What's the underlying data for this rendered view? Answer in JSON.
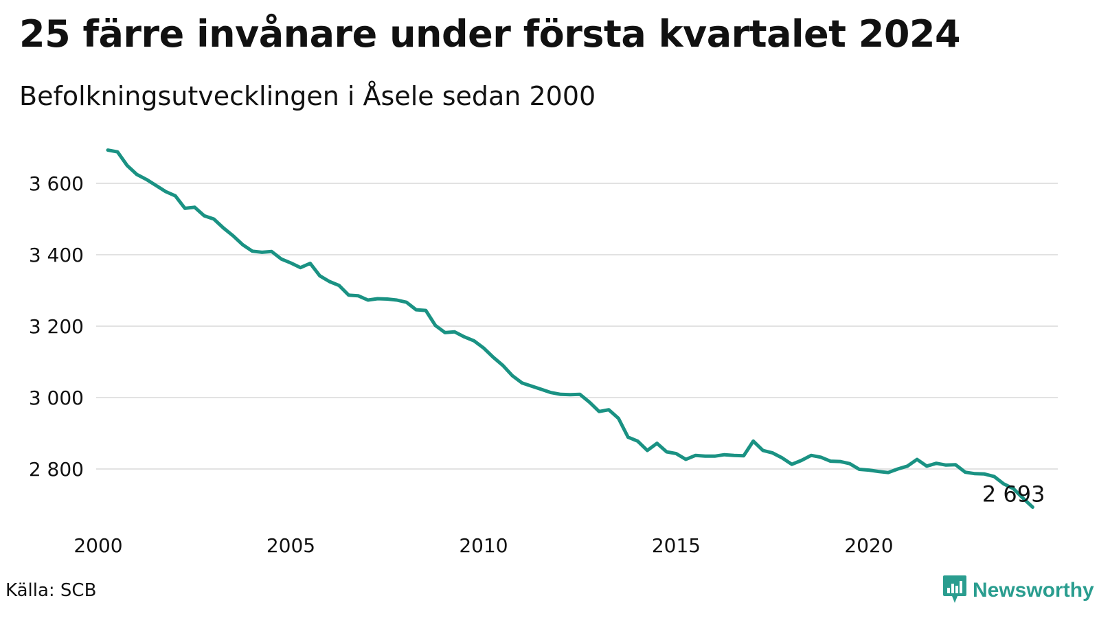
{
  "chart_data": {
    "type": "line",
    "title": "25 färre invånare under första kvartalet 2024",
    "subtitle": "Befolkningsutvecklingen i Åsele sedan 2000",
    "xlabel": "",
    "ylabel": "",
    "x_ticks": [
      "2000",
      "2005",
      "2010",
      "2015",
      "2020"
    ],
    "y_ticks": [
      "2 800",
      "3 000",
      "3 200",
      "3 400",
      "3 600"
    ],
    "xlim": [
      2000,
      2024.25
    ],
    "ylim": [
      2690,
      3710
    ],
    "grid": true,
    "line_color": "#1a9283",
    "end_label": "2 693",
    "series": [
      {
        "x": [
          2000.25,
          2000.5,
          2000.75,
          2001,
          2001.25,
          2001.5,
          2001.75,
          2002,
          2002.25,
          2002.5,
          2002.75,
          2003,
          2003.25,
          2003.5,
          2003.75,
          2004,
          2004.25,
          2004.5,
          2004.75,
          2005,
          2005.25,
          2005.5,
          2005.75,
          2006,
          2006.25,
          2006.5,
          2006.75,
          2007,
          2007.25,
          2007.5,
          2007.75,
          2008,
          2008.25,
          2008.5,
          2008.75,
          2009,
          2009.25,
          2009.5,
          2009.75,
          2010,
          2010.25,
          2010.5,
          2010.75,
          2011,
          2011.25,
          2011.5,
          2011.75,
          2012,
          2012.25,
          2012.5,
          2012.75,
          2013,
          2013.25,
          2013.5,
          2013.75,
          2014,
          2014.25,
          2014.5,
          2014.75,
          2015,
          2015.25,
          2015.5,
          2015.75,
          2016,
          2016.25,
          2016.5,
          2016.75,
          2017,
          2017.25,
          2017.5,
          2017.75,
          2018,
          2018.25,
          2018.5,
          2018.75,
          2019,
          2019.25,
          2019.5,
          2019.75,
          2020,
          2020.25,
          2020.5,
          2020.75,
          2021,
          2021.25,
          2021.5,
          2021.75,
          2022,
          2022.25,
          2022.5,
          2022.75,
          2023,
          2023.25,
          2023.5,
          2023.75,
          2024,
          2024.25
        ],
        "values": [
          3693,
          3688,
          3650,
          3625,
          3611,
          3594,
          3577,
          3565,
          3530,
          3533,
          3509,
          3500,
          3475,
          3453,
          3428,
          3410,
          3407,
          3409,
          3388,
          3377,
          3364,
          3376,
          3341,
          3325,
          3314,
          3287,
          3285,
          3273,
          3277,
          3276,
          3273,
          3267,
          3246,
          3244,
          3202,
          3182,
          3184,
          3170,
          3159,
          3139,
          3113,
          3090,
          3061,
          3041,
          3032,
          3023,
          3014,
          3009,
          3008,
          3009,
          2987,
          2961,
          2966,
          2942,
          2889,
          2878,
          2852,
          2872,
          2848,
          2843,
          2827,
          2838,
          2836,
          2836,
          2840,
          2838,
          2837,
          2878,
          2852,
          2845,
          2831,
          2813,
          2824,
          2838,
          2833,
          2822,
          2821,
          2815,
          2799,
          2797,
          2793,
          2790,
          2800,
          2808,
          2827,
          2808,
          2816,
          2811,
          2812,
          2791,
          2787,
          2786,
          2779,
          2758,
          2745,
          2718,
          2693
        ]
      }
    ]
  },
  "source": "Källa: SCB",
  "brand": {
    "name": "Newsworthy",
    "icon": "newsworthy-logo-icon",
    "color": "#2a9d8f"
  }
}
